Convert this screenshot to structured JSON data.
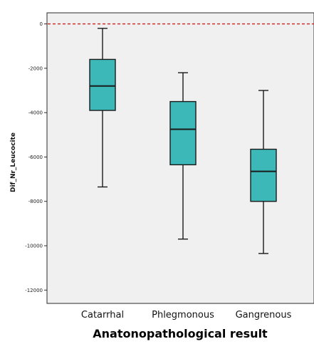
{
  "chart_data": {
    "type": "boxplot",
    "xlabel": "Anatonopathological result",
    "ylabel": "Dif_Nr_Leucocite",
    "categories": [
      "Catarrhal",
      "Phlegmonous",
      "Gangrenous"
    ],
    "boxes": [
      {
        "category": "Catarrhal",
        "min": -7350,
        "q1": -3900,
        "median": -2800,
        "q3": -1600,
        "max": -200
      },
      {
        "category": "Phlegmonous",
        "min": -9700,
        "q1": -6350,
        "median": -4750,
        "q3": -3500,
        "max": -2200
      },
      {
        "category": "Gangrenous",
        "min": -10350,
        "q1": -8000,
        "median": -6650,
        "q3": -5650,
        "max": -3000
      }
    ],
    "ylim": [
      -12600,
      500
    ],
    "yticks": [
      0,
      -2000,
      -4000,
      -6000,
      -8000,
      -10000,
      -12000
    ],
    "reference_line": {
      "y": 0,
      "color": "#cc1f1f",
      "style": "dashed"
    },
    "grid": false,
    "colors": {
      "box_fill": "#3cb8b8",
      "box_stroke": "#1a1a1a",
      "plot_background": "#f0f0f0"
    }
  }
}
